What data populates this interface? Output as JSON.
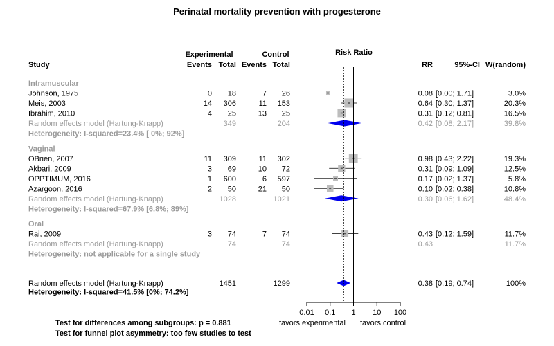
{
  "chart_data": {
    "type": "forest",
    "title": "Perinatal mortality prevention with progesterone",
    "header": {
      "study": "Study",
      "experimental": "Experimental",
      "control": "Control",
      "events": "Events",
      "total": "Total",
      "effect": "Risk Ratio",
      "rr": "RR",
      "ci": "95%-CI",
      "weight": "W(random)"
    },
    "groups": [
      {
        "name": "Intramuscular",
        "studies": [
          {
            "study": "Johnson, 1975",
            "e_events": "0",
            "e_total": "18",
            "c_events": "7",
            "c_total": "26",
            "rr": 0.08,
            "lo": 0.0,
            "hi": 1.71,
            "rr_text": "0.08",
            "ci_text": "[0.00; 1.71]",
            "w_text": "3.0%",
            "weight": 3.0
          },
          {
            "study": "Meis, 2003",
            "e_events": "14",
            "e_total": "306",
            "c_events": "11",
            "c_total": "153",
            "rr": 0.64,
            "lo": 0.3,
            "hi": 1.37,
            "rr_text": "0.64",
            "ci_text": "[0.30; 1.37]",
            "w_text": "20.3%",
            "weight": 20.3
          },
          {
            "study": "Ibrahim, 2010",
            "e_events": "4",
            "e_total": "25",
            "c_events": "13",
            "c_total": "25",
            "rr": 0.31,
            "lo": 0.12,
            "hi": 0.81,
            "rr_text": "0.31",
            "ci_text": "[0.12; 0.81]",
            "w_text": "16.5%",
            "weight": 16.5
          }
        ],
        "pooled": {
          "label": "Random effects model  (Hartung-Knapp)",
          "e_total": "349",
          "c_total": "204",
          "rr": 0.42,
          "lo": 0.08,
          "hi": 2.17,
          "rr_text": "0.42",
          "ci_text": "[0.08; 2.17]",
          "w_text": "39.8%"
        },
        "heterogeneity": "Heterogeneity: I-squared=23.4% [  0%;  92%]"
      },
      {
        "name": "Vaginal",
        "studies": [
          {
            "study": "OBrien, 2007",
            "e_events": "11",
            "e_total": "309",
            "c_events": "11",
            "c_total": "302",
            "rr": 0.98,
            "lo": 0.43,
            "hi": 2.22,
            "rr_text": "0.98",
            "ci_text": "[0.43; 2.22]",
            "w_text": "19.3%",
            "weight": 19.3
          },
          {
            "study": "Akbari, 2009",
            "e_events": "3",
            "e_total": "69",
            "c_events": "10",
            "c_total": "72",
            "rr": 0.31,
            "lo": 0.09,
            "hi": 1.09,
            "rr_text": "0.31",
            "ci_text": "[0.09; 1.09]",
            "w_text": "12.5%",
            "weight": 12.5
          },
          {
            "study": "OPPTIMUM, 2016",
            "e_events": "1",
            "e_total": "600",
            "c_events": "6",
            "c_total": "597",
            "rr": 0.17,
            "lo": 0.02,
            "hi": 1.37,
            "rr_text": "0.17",
            "ci_text": "[0.02; 1.37]",
            "w_text": "5.8%",
            "weight": 5.8
          },
          {
            "study": "Azargoon, 2016",
            "e_events": "2",
            "e_total": "50",
            "c_events": "21",
            "c_total": "50",
            "rr": 0.1,
            "lo": 0.02,
            "hi": 0.38,
            "rr_text": "0.10",
            "ci_text": "[0.02; 0.38]",
            "w_text": "10.8%",
            "weight": 10.8
          }
        ],
        "pooled": {
          "label": "Random effects model  (Hartung-Knapp)",
          "e_total": "1028",
          "c_total": "1021",
          "rr": 0.3,
          "lo": 0.06,
          "hi": 1.62,
          "rr_text": "0.30",
          "ci_text": "[0.06; 1.62]",
          "w_text": "48.4%"
        },
        "heterogeneity": "Heterogeneity: I-squared=67.9% [6.8%;  89%]"
      },
      {
        "name": "Oral",
        "studies": [
          {
            "study": "Rai, 2009",
            "e_events": "3",
            "e_total": "74",
            "c_events": "7",
            "c_total": "74",
            "rr": 0.43,
            "lo": 0.12,
            "hi": 1.59,
            "rr_text": "0.43",
            "ci_text": "[0.12; 1.59]",
            "w_text": "11.7%",
            "weight": 11.7
          }
        ],
        "pooled": {
          "label": "Random effects model  (Hartung-Knapp)",
          "e_total": "74",
          "c_total": "74",
          "rr": 0.43,
          "lo": null,
          "hi": null,
          "rr_text": "0.43",
          "ci_text": "",
          "w_text": "11.7%"
        },
        "heterogeneity": "Heterogeneity: not applicable for a single study"
      }
    ],
    "overall": {
      "label": "Random effects model  (Hartung-Knapp)",
      "e_total": "1451",
      "c_total": "1299",
      "rr": 0.38,
      "lo": 0.19,
      "hi": 0.74,
      "rr_text": "0.38",
      "ci_text": "[0.19; 0.74]",
      "w_text": "100%"
    },
    "overall_heterogeneity": "Heterogeneity: I-squared=41.5% [0%; 74.2%]",
    "x_axis": {
      "scale": "log",
      "range": [
        0.01,
        100
      ],
      "ticks": [
        0.01,
        0.1,
        1,
        10,
        100
      ],
      "tick_labels": [
        "0.01",
        "0.1",
        "1",
        "10",
        "100"
      ],
      "left_label": "favors experimental",
      "right_label": "favors control"
    },
    "footer": [
      "Test for differences among subgroups: p = 0.881",
      "Test for funnel plot asymmetry: too few studies to test"
    ],
    "colors": {
      "diamond": "#0000ee",
      "square": "#bdbdbd",
      "muted": "#9a9a9a"
    }
  }
}
